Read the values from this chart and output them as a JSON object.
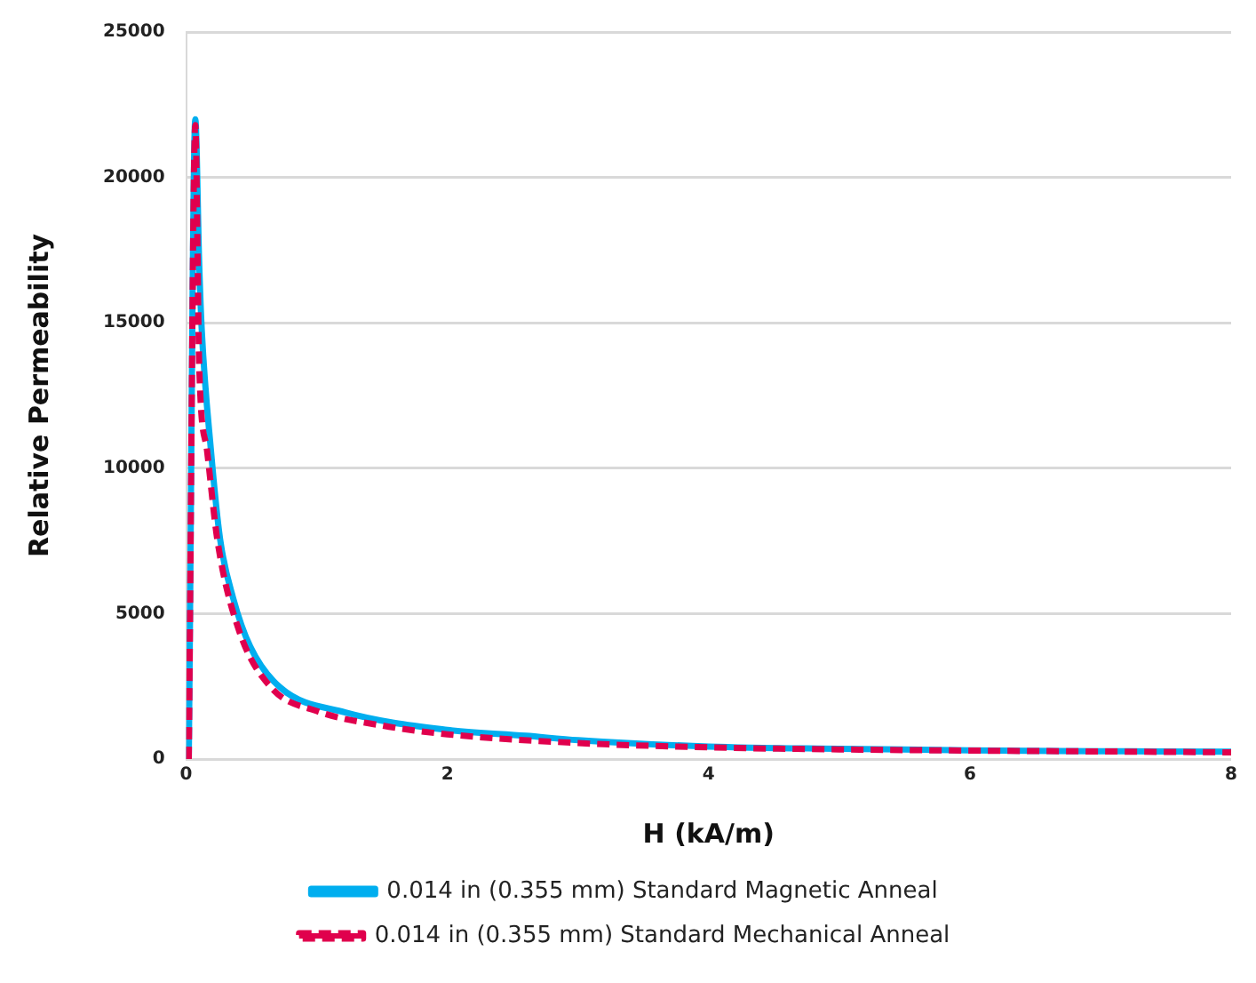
{
  "chart_data": {
    "type": "line",
    "xlabel": "H (kA/m)",
    "ylabel": "Relative Permeability",
    "xlim": [
      0,
      8
    ],
    "xticks": [
      0,
      2,
      4,
      6,
      8
    ],
    "ylim": [
      0,
      25000
    ],
    "yticks": [
      0,
      5000,
      10000,
      15000,
      20000,
      25000
    ],
    "grid": "y",
    "legend": "bottom",
    "marker": "none",
    "series": [
      {
        "name": "0.014 in (0.355 mm) Standard Magnetic Anneal",
        "color": "#00aeef",
        "line_style": "solid",
        "x": [
          0.02,
          0.07,
          0.1,
          0.12,
          0.19,
          0.26,
          0.36,
          0.49,
          0.72,
          1.22,
          2,
          2.6,
          3,
          4,
          5,
          6,
          7,
          8
        ],
        "values": [
          0,
          22000,
          17000,
          14700,
          10600,
          7560,
          5530,
          3870,
          2460,
          1600,
          1000,
          800,
          650,
          430,
          350,
          300,
          270,
          250
        ]
      },
      {
        "name": "0.014 in (0.355 mm) Standard Mechanical Anneal",
        "color": "#e0004d",
        "line_style": "dashed",
        "x": [
          0.02,
          0.07,
          0.1,
          0.16,
          0.24,
          0.4,
          0.65,
          1,
          1.5,
          2,
          3,
          4,
          5,
          6,
          7,
          8
        ],
        "values": [
          0,
          21800,
          13500,
          10600,
          7500,
          4480,
          2460,
          1650,
          1150,
          850,
          550,
          400,
          330,
          290,
          260,
          230
        ]
      }
    ]
  }
}
